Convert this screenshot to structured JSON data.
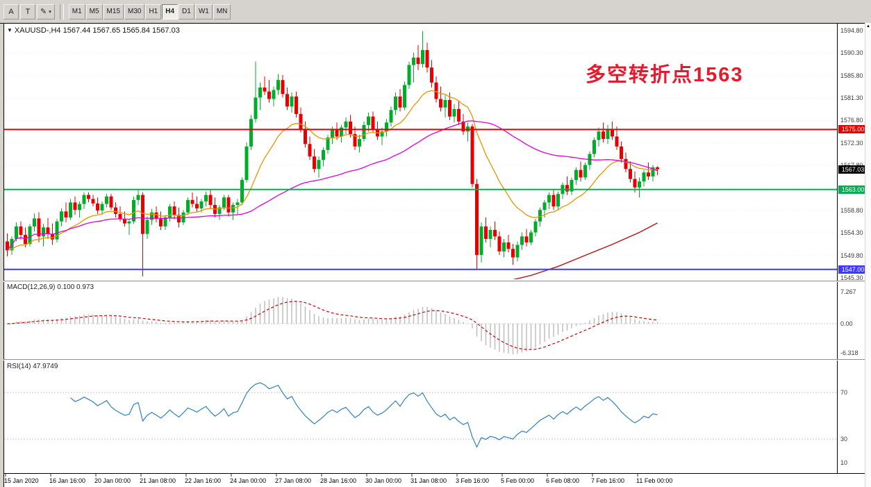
{
  "toolbar": {
    "tools": [
      {
        "name": "pointer-tool",
        "label": "A"
      },
      {
        "name": "text-tool",
        "label": "T"
      },
      {
        "name": "draw-color",
        "label": "✎"
      }
    ],
    "dropdown_caret": "▾",
    "timeframes": [
      "M1",
      "M5",
      "M15",
      "M30",
      "H1",
      "H4",
      "D1",
      "W1",
      "MN"
    ],
    "active_timeframe": "H4"
  },
  "header": {
    "caret": "▼",
    "text": "XAUUSD-,H4 1567.44 1567.65 1565.84 1567.03"
  },
  "annotation": {
    "text": "多空转折点1563",
    "color": "#e8192c"
  },
  "indicators": {
    "macd": {
      "label": "MACD(12,26,9) 0.100 0.973",
      "axis_labels": [
        "7.267",
        "0.00",
        "-6.318"
      ]
    },
    "rsi": {
      "label": "RSI(14) 47.9749",
      "axis_labels": [
        "70",
        "30",
        "10"
      ],
      "levels": [
        70,
        30
      ]
    }
  },
  "axes": {
    "price_ticks": [
      "1594.80",
      "1590.30",
      "1585.80",
      "1581.30",
      "1576.80",
      "1572.30",
      "1567.80",
      "1563.30",
      "1558.80",
      "1554.30",
      "1549.80",
      "1545.30"
    ],
    "time_labels": [
      "15 Jan 2020",
      "16 Jan 16:00",
      "20 Jan 00:00",
      "21 Jan 08:00",
      "22 Jan 16:00",
      "24 Jan 00:00",
      "27 Jan 08:00",
      "28 Jan 16:00",
      "30 Jan 00:00",
      "31 Jan 08:00",
      "3 Feb 16:00",
      "5 Feb 00:00",
      "6 Feb 08:00",
      "7 Feb 16:00",
      "11 Feb 00:00"
    ]
  },
  "scrollbar": {
    "up_icon": "▲"
  },
  "chart_data": {
    "type": "candlestick",
    "symbol": "XAUUSD-",
    "timeframe": "H4",
    "price_range": [
      1545.3,
      1594.8
    ],
    "hlines": [
      {
        "price": 1575.0,
        "label": "1575.00",
        "color": "#e60000"
      },
      {
        "price": 1563.0,
        "label": "1563.00",
        "color": "#00b050"
      },
      {
        "price": 1547.0,
        "label": "1547.00",
        "color": "#3b3bff"
      }
    ],
    "last_price": {
      "value": 1567.03,
      "label": "1567.03",
      "bg": "#000000"
    },
    "colors": {
      "bull": "#00ad29",
      "bear": "#e60000",
      "ma_fast": "#e69500",
      "ma_slow": "#dd00dd",
      "ma_long": "#b22222",
      "macd_hist": "#bdbdbd",
      "macd_signal": "#cc0000",
      "rsi": "#2e7fc1"
    },
    "ma_long_points": [
      [
        110,
        1544.5
      ],
      [
        116,
        1545.8
      ],
      [
        122,
        1547.6
      ],
      [
        128,
        1549.8
      ],
      [
        134,
        1552.0
      ],
      [
        140,
        1554.4
      ],
      [
        144,
        1556.3
      ]
    ],
    "ohlc": [
      [
        1552.6,
        1554.2,
        1549.6,
        1550.8
      ],
      [
        1550.8,
        1553.6,
        1549.9,
        1553.1
      ],
      [
        1553.1,
        1556.4,
        1552.6,
        1555.6
      ],
      [
        1555.6,
        1556.6,
        1553.0,
        1553.9
      ],
      [
        1553.9,
        1555.4,
        1551.4,
        1552.1
      ],
      [
        1552.1,
        1556.1,
        1551.6,
        1555.6
      ],
      [
        1555.6,
        1558.2,
        1554.6,
        1557.2
      ],
      [
        1557.2,
        1558.4,
        1552.4,
        1553.6
      ],
      [
        1553.6,
        1556.1,
        1551.6,
        1555.4
      ],
      [
        1555.4,
        1557.3,
        1553.1,
        1554.1
      ],
      [
        1554.1,
        1556.2,
        1551.9,
        1553.0
      ],
      [
        1553.0,
        1557.1,
        1552.4,
        1556.6
      ],
      [
        1556.6,
        1559.2,
        1555.6,
        1558.6
      ],
      [
        1558.6,
        1560.4,
        1556.4,
        1557.4
      ],
      [
        1557.4,
        1561.1,
        1556.9,
        1560.4
      ],
      [
        1560.4,
        1561.6,
        1557.9,
        1558.9
      ],
      [
        1558.9,
        1560.6,
        1557.4,
        1560.1
      ],
      [
        1560.1,
        1562.4,
        1559.1,
        1561.9
      ],
      [
        1561.9,
        1562.4,
        1560.4,
        1561.1
      ],
      [
        1561.1,
        1561.9,
        1559.6,
        1560.2
      ],
      [
        1560.2,
        1561.4,
        1558.1,
        1558.8
      ],
      [
        1558.8,
        1560.6,
        1557.9,
        1560.1
      ],
      [
        1560.1,
        1562.1,
        1559.4,
        1561.6
      ],
      [
        1561.6,
        1562.1,
        1558.9,
        1559.4
      ],
      [
        1559.4,
        1560.4,
        1557.4,
        1558.1
      ],
      [
        1558.1,
        1559.6,
        1556.6,
        1557.1
      ],
      [
        1557.1,
        1558.6,
        1555.6,
        1556.2
      ],
      [
        1556.2,
        1557.1,
        1553.9,
        1556.6
      ],
      [
        1556.6,
        1561.6,
        1556.1,
        1560.9
      ],
      [
        1560.9,
        1563.1,
        1559.9,
        1561.9
      ],
      [
        1561.9,
        1562.4,
        1545.6,
        1554.1
      ],
      [
        1554.1,
        1557.6,
        1553.1,
        1556.9
      ],
      [
        1556.9,
        1559.1,
        1555.9,
        1558.4
      ],
      [
        1558.4,
        1559.6,
        1556.4,
        1557.1
      ],
      [
        1557.1,
        1558.6,
        1554.9,
        1555.6
      ],
      [
        1555.6,
        1557.9,
        1554.9,
        1557.4
      ],
      [
        1557.4,
        1560.1,
        1556.6,
        1559.6
      ],
      [
        1559.6,
        1560.6,
        1557.1,
        1557.9
      ],
      [
        1557.9,
        1559.4,
        1555.4,
        1556.4
      ],
      [
        1556.4,
        1558.9,
        1555.9,
        1558.4
      ],
      [
        1558.4,
        1561.4,
        1557.9,
        1560.9
      ],
      [
        1560.9,
        1562.4,
        1559.4,
        1560.1
      ],
      [
        1560.1,
        1561.6,
        1558.6,
        1559.2
      ],
      [
        1559.2,
        1561.1,
        1558.4,
        1560.6
      ],
      [
        1560.6,
        1562.6,
        1559.6,
        1561.9
      ],
      [
        1561.9,
        1563.1,
        1559.1,
        1559.9
      ],
      [
        1559.9,
        1561.4,
        1557.4,
        1558.1
      ],
      [
        1558.1,
        1559.9,
        1556.9,
        1559.4
      ],
      [
        1559.4,
        1561.9,
        1558.9,
        1561.4
      ],
      [
        1561.4,
        1561.9,
        1557.6,
        1558.4
      ],
      [
        1558.4,
        1560.4,
        1556.9,
        1559.9
      ],
      [
        1559.9,
        1561.1,
        1557.9,
        1560.4
      ],
      [
        1560.4,
        1565.4,
        1559.9,
        1564.9
      ],
      [
        1564.9,
        1572.4,
        1564.4,
        1571.6
      ],
      [
        1571.6,
        1577.9,
        1570.9,
        1577.1
      ],
      [
        1577.1,
        1588.6,
        1576.4,
        1581.4
      ],
      [
        1581.4,
        1584.4,
        1578.9,
        1583.4
      ],
      [
        1583.4,
        1585.6,
        1581.9,
        1582.6
      ],
      [
        1582.6,
        1584.9,
        1580.4,
        1581.1
      ],
      [
        1581.1,
        1583.6,
        1579.6,
        1582.9
      ],
      [
        1582.9,
        1586.1,
        1581.9,
        1584.9
      ],
      [
        1584.9,
        1585.9,
        1581.4,
        1582.1
      ],
      [
        1582.1,
        1583.4,
        1578.9,
        1579.6
      ],
      [
        1579.6,
        1582.4,
        1578.4,
        1581.6
      ],
      [
        1581.6,
        1582.6,
        1577.4,
        1578.1
      ],
      [
        1578.1,
        1579.4,
        1574.4,
        1575.1
      ],
      [
        1575.1,
        1576.6,
        1571.4,
        1572.1
      ],
      [
        1572.1,
        1573.6,
        1568.9,
        1569.6
      ],
      [
        1569.6,
        1571.1,
        1566.4,
        1567.1
      ],
      [
        1567.1,
        1569.6,
        1565.4,
        1568.9
      ],
      [
        1568.9,
        1571.4,
        1567.6,
        1570.9
      ],
      [
        1570.9,
        1573.9,
        1570.1,
        1573.4
      ],
      [
        1573.4,
        1575.6,
        1572.1,
        1574.9
      ],
      [
        1574.9,
        1576.4,
        1572.9,
        1573.6
      ],
      [
        1573.6,
        1575.9,
        1572.4,
        1575.4
      ],
      [
        1575.4,
        1577.4,
        1574.1,
        1576.6
      ],
      [
        1576.6,
        1577.9,
        1573.4,
        1574.1
      ],
      [
        1574.1,
        1575.6,
        1570.9,
        1571.6
      ],
      [
        1571.6,
        1573.9,
        1570.4,
        1573.1
      ],
      [
        1573.1,
        1576.6,
        1572.6,
        1575.9
      ],
      [
        1575.9,
        1578.4,
        1574.6,
        1577.6
      ],
      [
        1577.6,
        1578.6,
        1574.4,
        1575.1
      ],
      [
        1575.1,
        1576.6,
        1572.9,
        1573.6
      ],
      [
        1573.6,
        1575.4,
        1571.9,
        1574.6
      ],
      [
        1574.6,
        1577.1,
        1573.6,
        1576.4
      ],
      [
        1576.4,
        1579.6,
        1575.6,
        1578.9
      ],
      [
        1578.9,
        1582.4,
        1577.9,
        1581.6
      ],
      [
        1581.6,
        1583.1,
        1578.6,
        1579.4
      ],
      [
        1579.4,
        1584.6,
        1578.9,
        1583.9
      ],
      [
        1583.9,
        1588.6,
        1583.1,
        1587.9
      ],
      [
        1587.9,
        1590.4,
        1584.4,
        1589.4
      ],
      [
        1589.4,
        1591.9,
        1586.9,
        1588.1
      ],
      [
        1588.1,
        1594.7,
        1587.4,
        1590.9
      ],
      [
        1590.9,
        1592.4,
        1586.4,
        1587.4
      ],
      [
        1587.4,
        1588.9,
        1583.4,
        1584.4
      ],
      [
        1584.4,
        1585.6,
        1580.4,
        1581.1
      ],
      [
        1581.1,
        1583.6,
        1578.6,
        1579.4
      ],
      [
        1579.4,
        1581.9,
        1577.4,
        1580.9
      ],
      [
        1580.9,
        1582.4,
        1576.9,
        1577.6
      ],
      [
        1577.6,
        1580.1,
        1576.4,
        1579.1
      ],
      [
        1579.1,
        1580.6,
        1575.9,
        1576.6
      ],
      [
        1576.6,
        1578.1,
        1573.9,
        1574.6
      ],
      [
        1574.6,
        1576.4,
        1572.6,
        1575.6
      ],
      [
        1575.6,
        1576.1,
        1563.4,
        1564.1
      ],
      [
        1564.1,
        1565.1,
        1546.9,
        1549.9
      ],
      [
        1549.9,
        1556.4,
        1548.4,
        1555.6
      ],
      [
        1555.6,
        1557.4,
        1552.4,
        1553.1
      ],
      [
        1553.1,
        1555.6,
        1551.4,
        1554.9
      ],
      [
        1554.9,
        1556.6,
        1552.9,
        1553.6
      ],
      [
        1553.6,
        1554.6,
        1549.9,
        1550.6
      ],
      [
        1550.6,
        1553.1,
        1549.4,
        1552.4
      ],
      [
        1552.4,
        1553.9,
        1550.4,
        1551.1
      ],
      [
        1551.1,
        1552.1,
        1547.9,
        1549.4
      ],
      [
        1549.4,
        1552.6,
        1548.6,
        1551.9
      ],
      [
        1551.9,
        1554.4,
        1550.9,
        1553.6
      ],
      [
        1553.6,
        1555.1,
        1551.6,
        1552.4
      ],
      [
        1552.4,
        1554.9,
        1551.9,
        1554.4
      ],
      [
        1554.4,
        1557.1,
        1553.6,
        1556.6
      ],
      [
        1556.6,
        1559.4,
        1555.6,
        1558.9
      ],
      [
        1558.9,
        1560.9,
        1557.4,
        1560.4
      ],
      [
        1560.4,
        1562.4,
        1559.1,
        1561.9
      ],
      [
        1561.9,
        1562.9,
        1558.9,
        1559.6
      ],
      [
        1559.6,
        1562.6,
        1558.9,
        1562.1
      ],
      [
        1562.1,
        1564.4,
        1561.1,
        1563.9
      ],
      [
        1563.9,
        1565.6,
        1561.9,
        1562.6
      ],
      [
        1562.6,
        1565.4,
        1561.9,
        1564.9
      ],
      [
        1564.9,
        1567.4,
        1563.9,
        1566.9
      ],
      [
        1566.9,
        1568.6,
        1564.6,
        1565.4
      ],
      [
        1565.4,
        1568.4,
        1564.9,
        1567.9
      ],
      [
        1567.9,
        1570.6,
        1566.9,
        1570.1
      ],
      [
        1570.1,
        1573.4,
        1569.4,
        1572.9
      ],
      [
        1572.9,
        1575.4,
        1571.6,
        1574.6
      ],
      [
        1574.6,
        1576.4,
        1572.4,
        1573.1
      ],
      [
        1573.1,
        1575.9,
        1572.1,
        1575.1
      ],
      [
        1575.1,
        1576.6,
        1572.9,
        1573.6
      ],
      [
        1573.6,
        1575.6,
        1570.9,
        1571.6
      ],
      [
        1571.6,
        1572.6,
        1568.4,
        1569.1
      ],
      [
        1569.1,
        1570.4,
        1566.4,
        1567.1
      ],
      [
        1567.1,
        1568.6,
        1564.4,
        1565.1
      ],
      [
        1565.1,
        1566.6,
        1562.4,
        1563.4
      ],
      [
        1563.4,
        1565.4,
        1561.4,
        1564.6
      ],
      [
        1564.6,
        1566.9,
        1563.6,
        1566.4
      ],
      [
        1566.4,
        1568.4,
        1564.9,
        1565.6
      ],
      [
        1565.6,
        1567.9,
        1564.6,
        1567.44
      ],
      [
        1567.44,
        1567.65,
        1565.84,
        1567.03
      ]
    ]
  }
}
